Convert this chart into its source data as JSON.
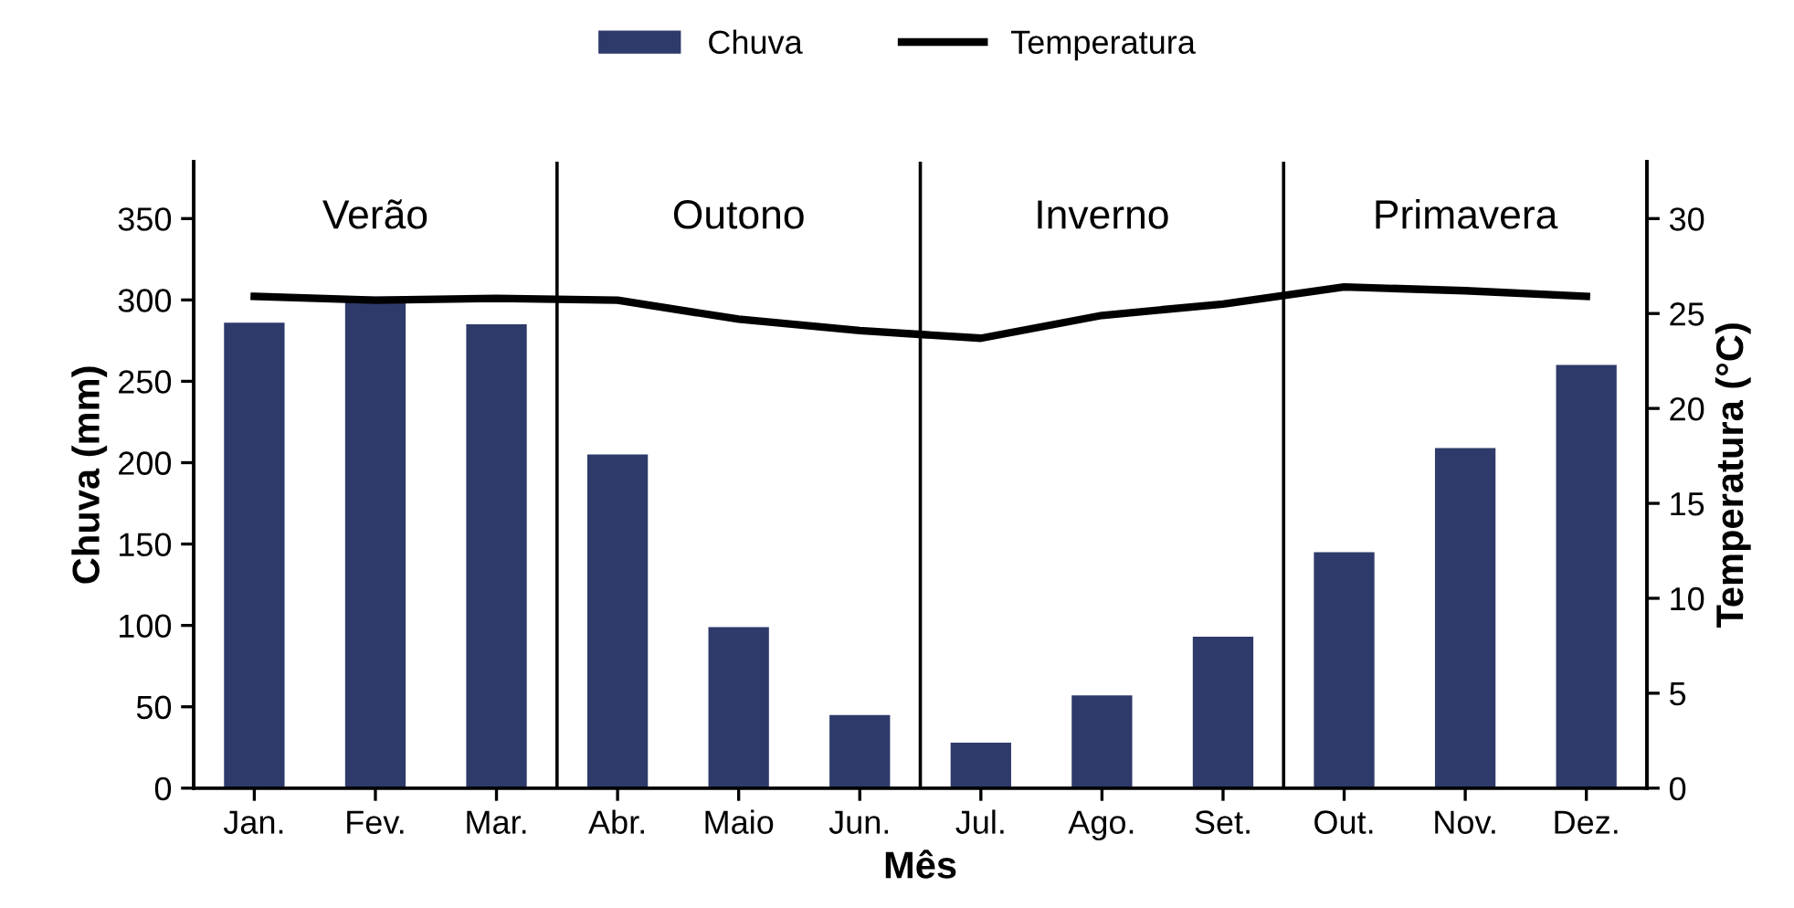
{
  "chart_data": {
    "type": "bar",
    "xlabel": "Mês",
    "ylabel": "Chuva (mm)",
    "y2label": "Temperatura (°C)",
    "categories": [
      "Jan.",
      "Fev.",
      "Mar.",
      "Abr.",
      "Maio",
      "Jun.",
      "Jul.",
      "Ago.",
      "Set.",
      "Out.",
      "Nov.",
      "Dez."
    ],
    "series": [
      {
        "name": "Chuva",
        "color": "#2e3a6a",
        "values": [
          286,
          302,
          285,
          205,
          99,
          45,
          28,
          57,
          93,
          145,
          209,
          260
        ]
      },
      {
        "name": "Temperatura",
        "type": "line",
        "axis": "y2",
        "color": "#000000",
        "values": [
          25.9,
          25.7,
          25.8,
          25.7,
          24.7,
          24.1,
          23.7,
          24.9,
          25.5,
          26.4,
          26.2,
          25.9
        ]
      }
    ],
    "ylim": [
      0,
      385
    ],
    "yticks": [
      0,
      50,
      100,
      150,
      200,
      250,
      300,
      350
    ],
    "y2lim": [
      0,
      33
    ],
    "y2ticks": [
      0,
      5,
      10,
      15,
      20,
      25,
      30
    ],
    "annotations": [
      "Verão",
      "Outono",
      "Inverno",
      "Primavera"
    ],
    "legend": "top",
    "grid": false
  }
}
